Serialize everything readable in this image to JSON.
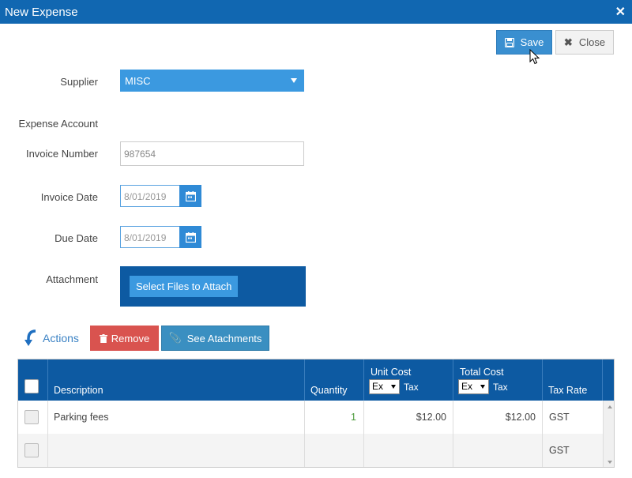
{
  "window": {
    "title": "New Expense",
    "close_glyph": "✕"
  },
  "toolbar": {
    "save_label": "Save",
    "close_label": "Close"
  },
  "form": {
    "supplier_label": "Supplier",
    "supplier_value": "MISC",
    "expense_account_label": "Expense Account",
    "invoice_number_label": "Invoice Number",
    "invoice_number_value": "987654",
    "invoice_date_label": "Invoice Date",
    "invoice_date_value": "8/01/2019",
    "due_date_label": "Due Date",
    "due_date_value": "8/01/2019",
    "attachment_label": "Attachment",
    "attach_button": "Select Files to Attach"
  },
  "actions": {
    "label": "Actions",
    "remove_label": "Remove",
    "see_attachments_label": "See Atachments"
  },
  "grid": {
    "headers": {
      "description": "Description",
      "quantity": "Quantity",
      "unit_cost_top": "Unit Cost",
      "unit_cost_select": "Ex",
      "unit_cost_tax": "Tax",
      "total_cost_top": "Total Cost",
      "total_cost_select": "Ex",
      "total_cost_tax": "Tax",
      "tax_rate": "Tax Rate"
    },
    "rows": [
      {
        "description": "Parking fees",
        "quantity": "1",
        "unit_cost": "$12.00",
        "total_cost": "$12.00",
        "tax_rate": "GST"
      },
      {
        "description": "",
        "quantity": "",
        "unit_cost": "",
        "total_cost": "",
        "tax_rate": "GST"
      }
    ]
  },
  "colors": {
    "title_bar": "#1167b1",
    "header": "#0d5aa2",
    "primary_button": "#3a8fd0",
    "danger_button": "#d9534f",
    "select_accent": "#3b99e0"
  }
}
